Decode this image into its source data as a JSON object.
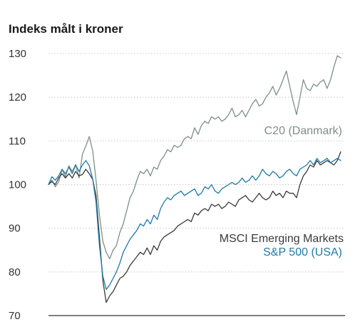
{
  "chart_data": {
    "type": "line",
    "title": "Indeks målt i kroner",
    "xlabel": "",
    "ylabel": "",
    "ylim": [
      70,
      130
    ],
    "yticks": [
      130,
      120,
      110,
      100,
      90,
      80,
      70
    ],
    "grid": true,
    "colors": {
      "C20 (Danmark)": "#7f8f87",
      "MSCI Emerging Markets": "#3a3a3a",
      "S&P 500 (USA)": "#1f7aa8"
    },
    "series": [
      {
        "name": "C20 (Danmark)",
        "values": [
          100.0,
          101.0,
          99.5,
          100.6,
          103.5,
          101.8,
          104.3,
          103.0,
          104.6,
          101.5,
          107.0,
          108.8,
          111.0,
          107.8,
          101.0,
          93.0,
          87.0,
          84.5,
          83.0,
          85.0,
          86.0,
          89.0,
          91.0,
          94.0,
          97.0,
          98.5,
          101.0,
          103.0,
          102.5,
          103.5,
          102.0,
          104.0,
          103.5,
          105.5,
          106.5,
          108.0,
          107.5,
          109.0,
          108.5,
          109.0,
          110.5,
          111.0,
          110.5,
          113.0,
          111.5,
          113.5,
          114.5,
          114.0,
          115.5,
          115.0,
          115.5,
          114.5,
          115.0,
          116.0,
          117.5,
          115.5,
          116.0,
          117.0,
          115.5,
          117.0,
          118.5,
          119.5,
          118.0,
          118.5,
          120.0,
          121.0,
          122.5,
          120.5,
          122.0,
          124.0,
          126.0,
          122.5,
          119.0,
          116.0,
          120.0,
          124.0,
          122.0,
          121.5,
          123.0,
          122.5,
          123.5,
          124.0,
          122.0,
          124.0,
          127.0,
          129.5,
          129.0
        ]
      },
      {
        "name": "MSCI Emerging Markets",
        "values": [
          100.0,
          100.7,
          100.0,
          101.5,
          102.5,
          101.5,
          102.5,
          101.5,
          103.0,
          102.0,
          102.3,
          103.5,
          102.5,
          101.2,
          97.5,
          88.0,
          78.0,
          73.0,
          74.5,
          75.5,
          77.0,
          78.5,
          79.0,
          80.0,
          81.5,
          82.5,
          83.5,
          84.5,
          84.0,
          85.5,
          84.0,
          86.0,
          85.0,
          87.0,
          88.0,
          88.5,
          89.0,
          89.5,
          90.5,
          91.0,
          91.5,
          92.0,
          91.5,
          93.5,
          93.0,
          94.0,
          94.5,
          94.0,
          95.5,
          95.0,
          95.5,
          94.5,
          95.0,
          96.0,
          95.5,
          95.0,
          96.5,
          97.0,
          97.5,
          96.5,
          96.0,
          97.0,
          98.0,
          97.0,
          96.5,
          97.0,
          98.5,
          97.5,
          98.0,
          97.0,
          98.5,
          98.0,
          98.0,
          97.0,
          100.0,
          102.0,
          103.0,
          104.5,
          104.0,
          105.5,
          104.5,
          105.0,
          105.5,
          105.0,
          104.5,
          105.5,
          107.5
        ]
      },
      {
        "name": "S&P 500 (USA)",
        "values": [
          100.0,
          101.8,
          101.0,
          102.0,
          103.5,
          102.5,
          104.0,
          102.5,
          104.5,
          103.0,
          104.5,
          105.5,
          104.3,
          101.3,
          96.0,
          86.0,
          79.0,
          76.0,
          77.0,
          78.5,
          80.0,
          82.0,
          84.5,
          86.0,
          87.5,
          88.5,
          89.5,
          91.0,
          90.5,
          92.0,
          91.0,
          93.0,
          92.0,
          94.5,
          96.0,
          97.0,
          96.5,
          97.5,
          98.0,
          98.5,
          97.5,
          98.0,
          98.5,
          99.0,
          97.5,
          98.0,
          99.5,
          99.0,
          100.0,
          98.5,
          98.0,
          99.0,
          99.5,
          100.0,
          100.5,
          100.0,
          100.5,
          101.5,
          100.5,
          101.0,
          102.0,
          101.0,
          102.0,
          103.5,
          102.5,
          102.0,
          103.0,
          102.5,
          101.5,
          102.0,
          103.0,
          103.5,
          102.5,
          102.0,
          103.5,
          104.0,
          104.5,
          105.5,
          104.5,
          106.0,
          105.0,
          105.5,
          106.0,
          105.0,
          105.5,
          106.0,
          105.5
        ]
      }
    ]
  }
}
